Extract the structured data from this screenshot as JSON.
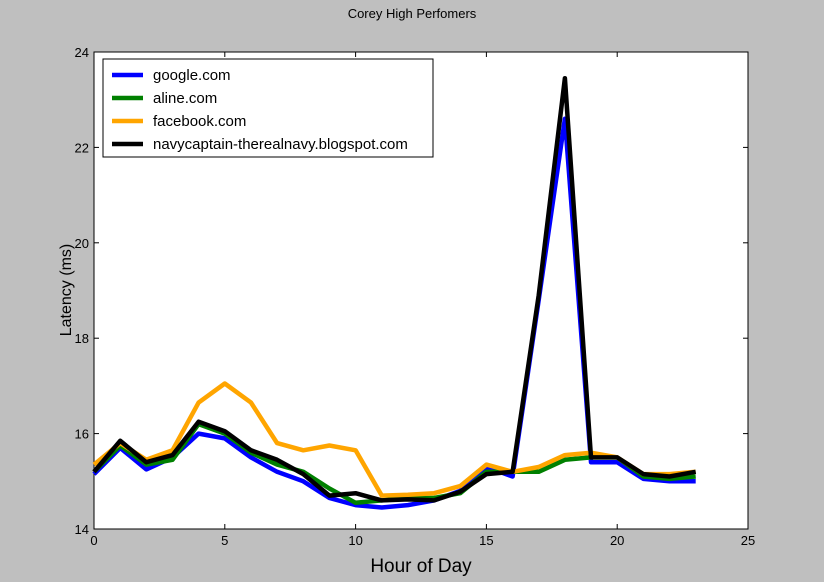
{
  "chart_data": {
    "type": "line",
    "title": "Corey High Perfomers",
    "xlabel": "Hour of Day",
    "ylabel": "Latency (ms)",
    "xlim": [
      0,
      25
    ],
    "ylim": [
      14,
      24
    ],
    "xticks": [
      0,
      5,
      10,
      15,
      20,
      25
    ],
    "yticks": [
      14,
      16,
      18,
      20,
      22,
      24
    ],
    "legend_position": "top-left",
    "grid": false,
    "x": [
      0,
      1,
      2,
      3,
      4,
      5,
      6,
      7,
      8,
      9,
      10,
      11,
      12,
      13,
      14,
      15,
      16,
      17,
      18,
      19,
      20,
      21,
      22,
      23
    ],
    "series": [
      {
        "name": "google.com",
        "color": "#0000ff",
        "values": [
          15.15,
          15.7,
          15.25,
          15.5,
          16.0,
          15.9,
          15.5,
          15.2,
          15.0,
          14.65,
          14.5,
          14.45,
          14.5,
          14.6,
          14.8,
          15.3,
          15.1,
          18.8,
          22.6,
          15.4,
          15.4,
          15.05,
          15.0,
          15.0
        ]
      },
      {
        "name": "aline.com",
        "color": "#008000",
        "values": [
          15.2,
          15.75,
          15.35,
          15.45,
          16.2,
          16.0,
          15.6,
          15.35,
          15.2,
          14.85,
          14.55,
          14.6,
          14.65,
          14.65,
          14.75,
          15.2,
          15.2,
          15.2,
          15.45,
          15.5,
          15.5,
          15.1,
          15.05,
          15.1
        ]
      },
      {
        "name": "facebook.com",
        "color": "#ffa500",
        "values": [
          15.35,
          15.8,
          15.45,
          15.65,
          16.65,
          17.05,
          16.65,
          15.8,
          15.65,
          15.75,
          15.65,
          14.7,
          14.72,
          14.75,
          14.9,
          15.35,
          15.2,
          15.3,
          15.55,
          15.6,
          15.5,
          15.15,
          15.15,
          15.2
        ]
      },
      {
        "name": "navycaptain-therealnavy.blogspot.com",
        "color": "#000000",
        "values": [
          15.2,
          15.85,
          15.4,
          15.55,
          16.25,
          16.05,
          15.65,
          15.45,
          15.15,
          14.7,
          14.75,
          14.6,
          14.62,
          14.6,
          14.78,
          15.15,
          15.2,
          18.9,
          23.45,
          15.5,
          15.5,
          15.15,
          15.1,
          15.2
        ]
      }
    ]
  }
}
